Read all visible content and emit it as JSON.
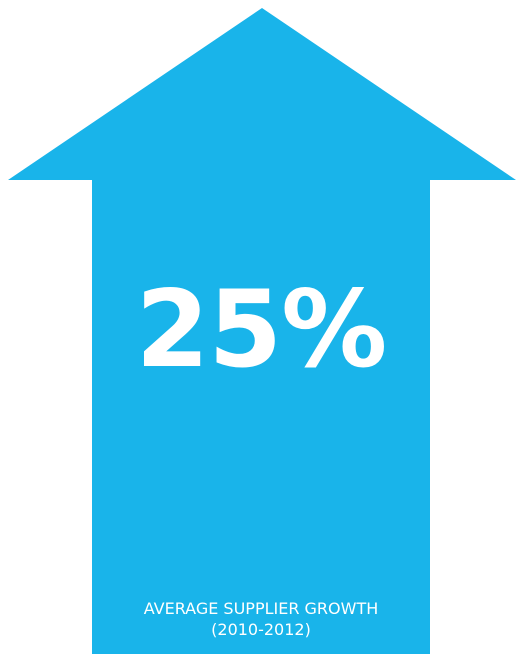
{
  "graphic": {
    "icon": "up-arrow-icon",
    "color": "#19b4ea"
  },
  "stat": {
    "value": "25%"
  },
  "caption": {
    "line1": "AVERAGE SUPPLIER GROWTH",
    "line2": "(2010-2012)"
  }
}
